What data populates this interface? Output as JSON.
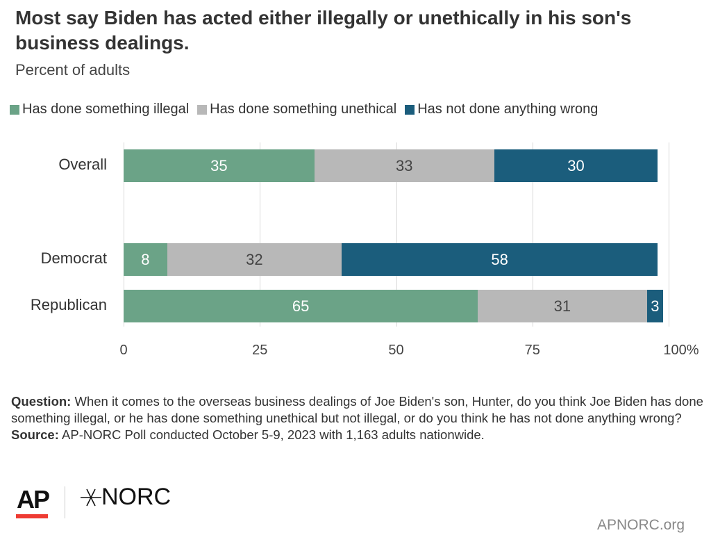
{
  "title": "Most say Biden has acted either illegally or unethically in his son's business dealings.",
  "subtitle": "Percent of adults",
  "chart_data": {
    "type": "bar",
    "orientation": "horizontal",
    "stacked": true,
    "categories": [
      "Overall",
      "Democrat",
      "Republican"
    ],
    "series": [
      {
        "name": "Has done something illegal",
        "values": [
          35,
          8,
          65
        ],
        "color": "#6ba387",
        "label_color": "#ffffff"
      },
      {
        "name": "Has done something unethical",
        "values": [
          33,
          32,
          31
        ],
        "color": "#b8b8b8",
        "label_color": "#444444"
      },
      {
        "name": "Has not done anything wrong",
        "values": [
          30,
          58,
          3
        ],
        "color": "#1b5d7c",
        "label_color": "#ffffff"
      }
    ],
    "xlim": [
      0,
      100
    ],
    "xticks": [
      "0",
      "25",
      "50",
      "75",
      "100%"
    ],
    "grid": true,
    "legend": "top"
  },
  "footer": {
    "question_label": "Question:",
    "question": " When it comes to the overseas business dealings of Joe Biden's son, Hunter, do you think Joe Biden has done something illegal, or he has done something unethical but not illegal, or do you think he has not done anything wrong?",
    "source_label": "Source:",
    "source": " AP-NORC Poll conducted October 5-9, 2023 with 1,163 adults nationwide."
  },
  "logos": {
    "ap": "AP",
    "norc": "NORC",
    "ap_accent": "#ee3b33"
  },
  "site": "APNORC.org"
}
